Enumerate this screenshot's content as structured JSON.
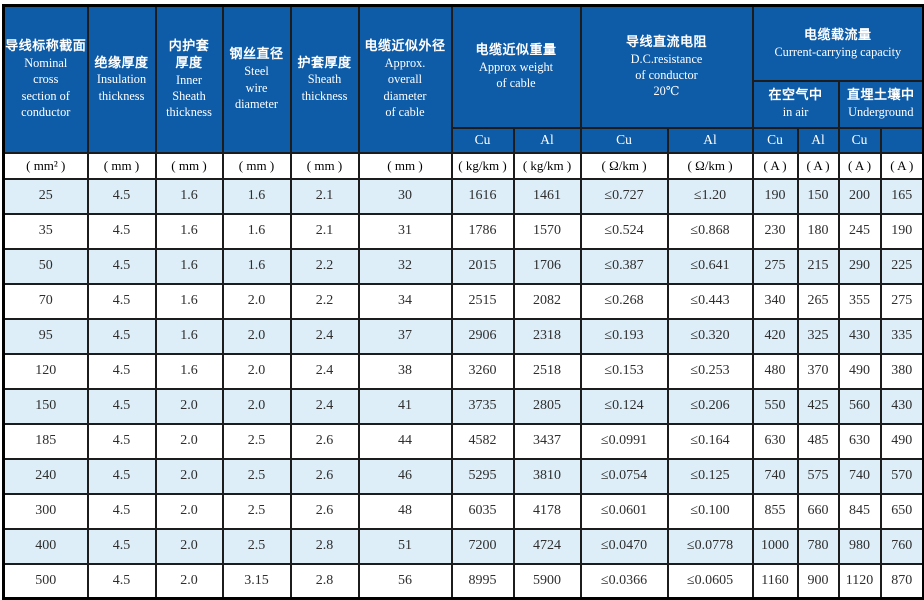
{
  "colors": {
    "header_background": "#0e5ba7",
    "header_text": "#ffffff",
    "row_alternate": "#ddeef8",
    "row_plain": "#ffffff",
    "grid_border": "#1c1c1c",
    "data_text": "#2e2e2e"
  },
  "headers": {
    "nominal": {
      "zh": "导线标称截面",
      "en": "Nominal\ncross\nsection of\nconductor"
    },
    "insulation": {
      "zh": "绝缘厚度",
      "en": "Insulation\nthickness"
    },
    "inner_sheath": {
      "zh": "内护套\n厚度",
      "en": "Inner\nSheath\nthickness"
    },
    "steel_wire": {
      "zh": "钢丝直径",
      "en": "Steel\nwire\ndiameter"
    },
    "sheath": {
      "zh": "护套厚度",
      "en": "Sheath\nthickness"
    },
    "diameter": {
      "zh": "电缆近似外径",
      "en": "Approx.\noverall\ndiameter\nof cable"
    },
    "weight": {
      "zh": "电缆近似重量",
      "en": "Approx weight\nof cable"
    },
    "resistance": {
      "zh": "导线直流电阻",
      "en": "D.C.resistance\nof conductor\n20℃"
    },
    "capacity": {
      "zh": "电缆载流量",
      "en": "Current-carrying capacity"
    },
    "in_air": {
      "zh": "在空气中",
      "en": "in air"
    },
    "underground": {
      "zh": "直埋土壤中",
      "en": "Underground"
    }
  },
  "subheaders": [
    "Cu",
    "Al",
    "Cu",
    "Al",
    "Cu",
    "Al",
    "Cu",
    ""
  ],
  "units": [
    "( mm² )",
    "( mm )",
    "( mm )",
    "( mm )",
    "( mm )",
    "( mm )",
    "( kg/km )",
    "( kg/km )",
    "( Ω/km )",
    "( Ω/km )",
    "( A )",
    "( A )",
    "( A )",
    "( A )"
  ],
  "rows": [
    [
      "25",
      "4.5",
      "1.6",
      "1.6",
      "2.1",
      "30",
      "1616",
      "1461",
      "≤0.727",
      "≤1.20",
      "190",
      "150",
      "200",
      "165"
    ],
    [
      "35",
      "4.5",
      "1.6",
      "1.6",
      "2.1",
      "31",
      "1786",
      "1570",
      "≤0.524",
      "≤0.868",
      "230",
      "180",
      "245",
      "190"
    ],
    [
      "50",
      "4.5",
      "1.6",
      "1.6",
      "2.2",
      "32",
      "2015",
      "1706",
      "≤0.387",
      "≤0.641",
      "275",
      "215",
      "290",
      "225"
    ],
    [
      "70",
      "4.5",
      "1.6",
      "2.0",
      "2.2",
      "34",
      "2515",
      "2082",
      "≤0.268",
      "≤0.443",
      "340",
      "265",
      "355",
      "275"
    ],
    [
      "95",
      "4.5",
      "1.6",
      "2.0",
      "2.4",
      "37",
      "2906",
      "2318",
      "≤0.193",
      "≤0.320",
      "420",
      "325",
      "430",
      "335"
    ],
    [
      "120",
      "4.5",
      "1.6",
      "2.0",
      "2.4",
      "38",
      "3260",
      "2518",
      "≤0.153",
      "≤0.253",
      "480",
      "370",
      "490",
      "380"
    ],
    [
      "150",
      "4.5",
      "2.0",
      "2.0",
      "2.4",
      "41",
      "3735",
      "2805",
      "≤0.124",
      "≤0.206",
      "550",
      "425",
      "560",
      "430"
    ],
    [
      "185",
      "4.5",
      "2.0",
      "2.5",
      "2.6",
      "44",
      "4582",
      "3437",
      "≤0.0991",
      "≤0.164",
      "630",
      "485",
      "630",
      "490"
    ],
    [
      "240",
      "4.5",
      "2.0",
      "2.5",
      "2.6",
      "46",
      "5295",
      "3810",
      "≤0.0754",
      "≤0.125",
      "740",
      "575",
      "740",
      "570"
    ],
    [
      "300",
      "4.5",
      "2.0",
      "2.5",
      "2.6",
      "48",
      "6035",
      "4178",
      "≤0.0601",
      "≤0.100",
      "855",
      "660",
      "845",
      "650"
    ],
    [
      "400",
      "4.5",
      "2.0",
      "2.5",
      "2.8",
      "51",
      "7200",
      "4724",
      "≤0.0470",
      "≤0.0778",
      "1000",
      "780",
      "980",
      "760"
    ],
    [
      "500",
      "4.5",
      "2.0",
      "3.15",
      "2.8",
      "56",
      "8995",
      "5900",
      "≤0.0366",
      "≤0.0605",
      "1160",
      "900",
      "1120",
      "870"
    ]
  ]
}
